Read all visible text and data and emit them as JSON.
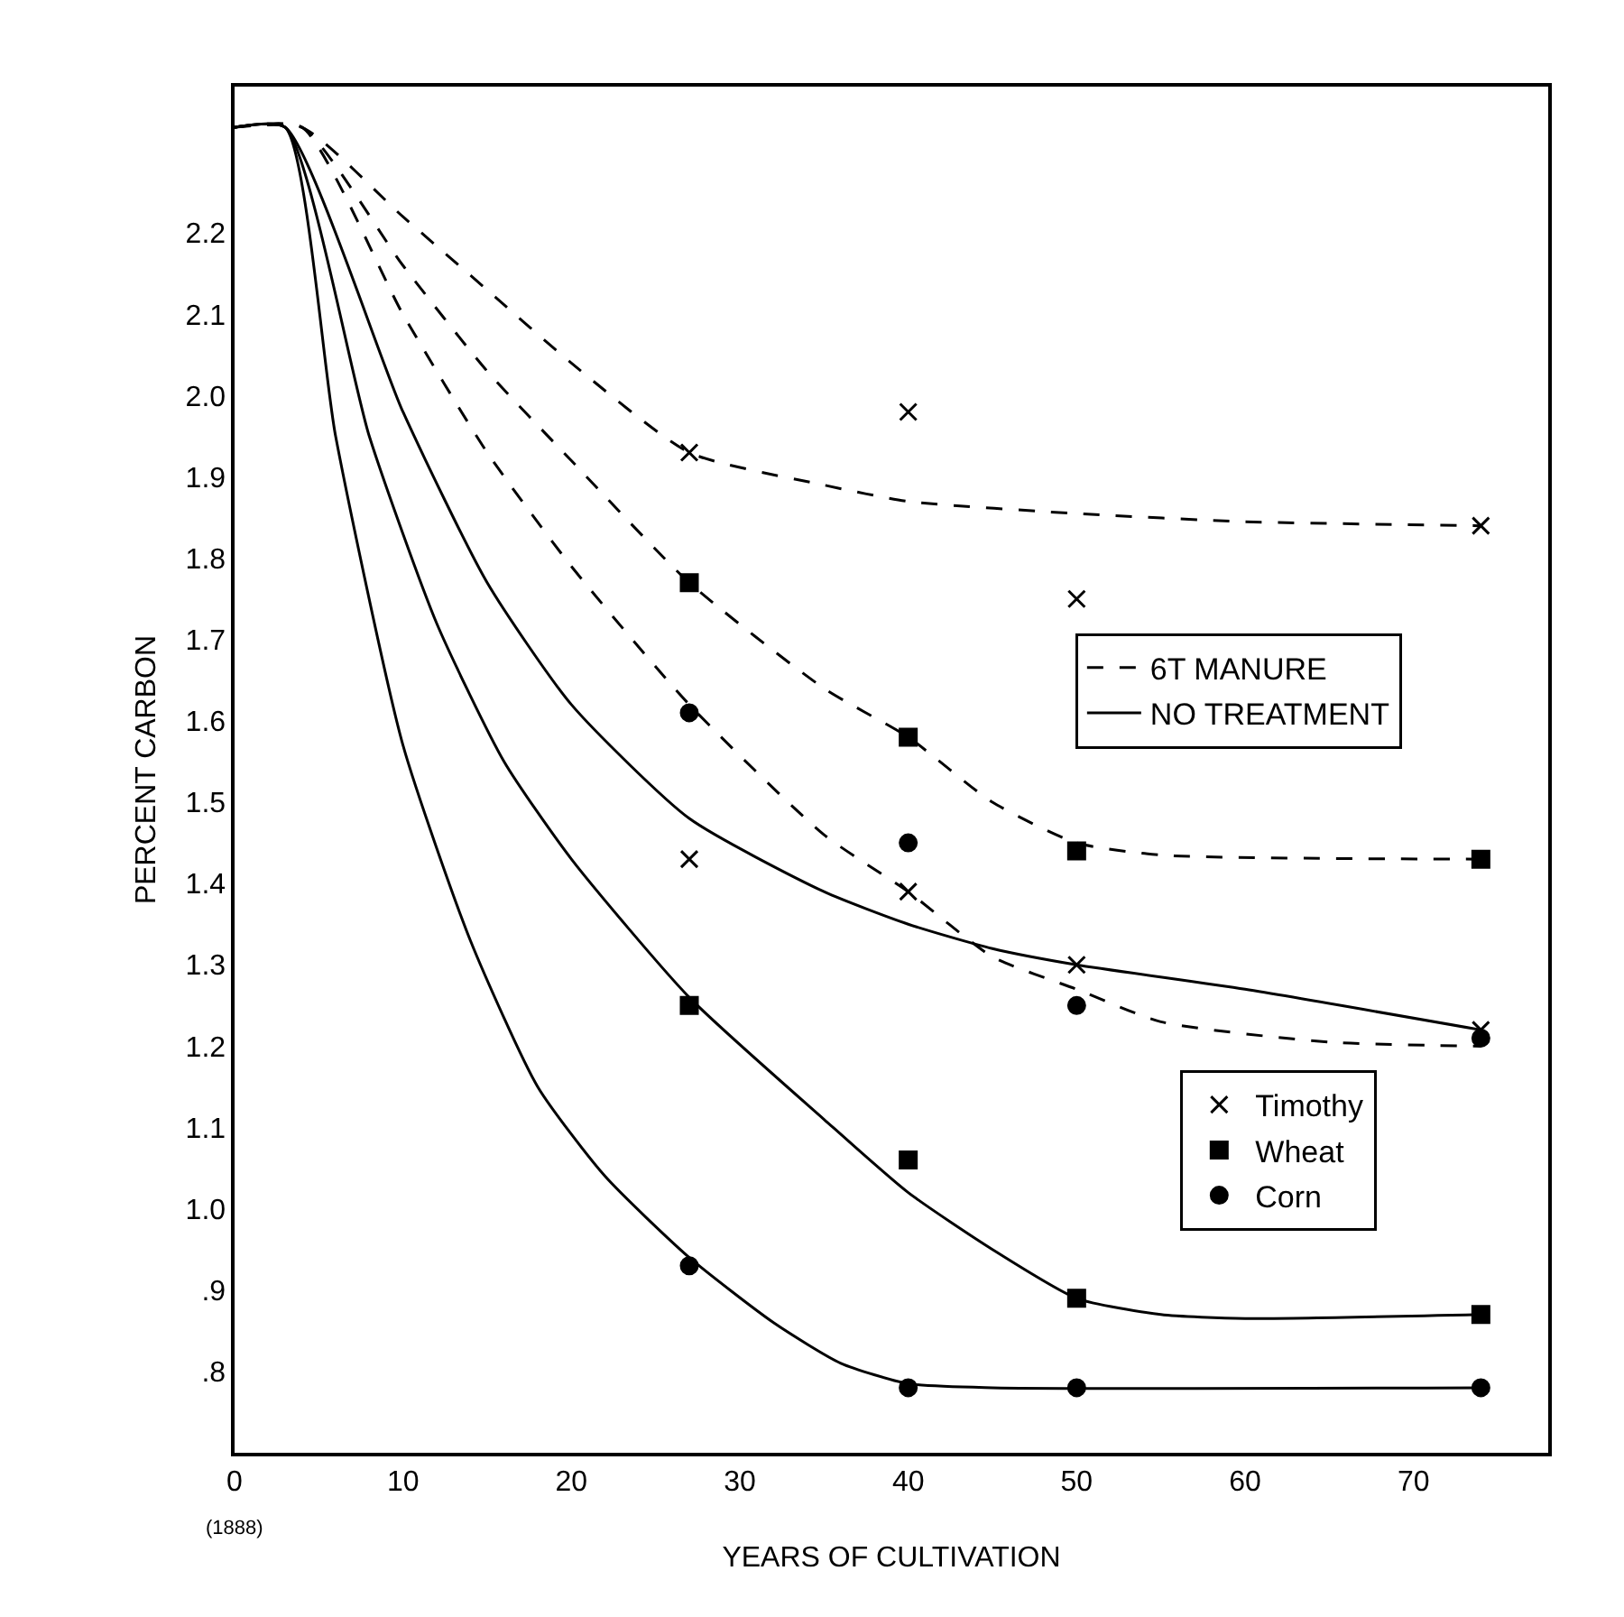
{
  "chart_data": {
    "type": "line",
    "xlabel": "YEARS OF CULTIVATION",
    "ylabel": "PERCENT CARBON",
    "annotations": [
      "(1888)"
    ],
    "xlim": [
      0,
      78
    ],
    "xticks": [
      0,
      10,
      20,
      30,
      40,
      50,
      60,
      70
    ],
    "ylim": [
      0.7,
      2.38
    ],
    "yticks": [
      {
        "value": 0.8,
        "label": ".8"
      },
      {
        "value": 0.9,
        "label": ".9"
      },
      {
        "value": 1.0,
        "label": "1.0"
      },
      1.1,
      1.2,
      1.3,
      1.4,
      1.5,
      1.6,
      1.7,
      1.8,
      1.9,
      {
        "value": 2.0,
        "label": "2.0"
      },
      2.1,
      2.2
    ],
    "legend": "right",
    "series": [
      {
        "name": "6T MANURE",
        "color": "#000000",
        "line_style": "dashed",
        "marker": "none",
        "x": [
          0,
          4,
          10,
          15,
          20,
          27,
          35,
          40,
          50,
          60,
          74
        ],
        "values": [
          2.33,
          2.33,
          2.22,
          2.13,
          2.04,
          1.93,
          1.89,
          1.87,
          1.855,
          1.845,
          1.84
        ]
      },
      {
        "color": "#000000",
        "line_style": "dashed",
        "marker": "none",
        "x": [
          0,
          4,
          10,
          15,
          20,
          27,
          35,
          40,
          45,
          50,
          55,
          74
        ],
        "values": [
          2.33,
          2.33,
          2.16,
          2.03,
          1.92,
          1.77,
          1.64,
          1.58,
          1.5,
          1.45,
          1.435,
          1.43
        ]
      },
      {
        "color": "#000000",
        "line_style": "dashed",
        "marker": "none",
        "x": [
          0,
          4,
          10,
          15,
          20,
          27,
          35,
          40,
          45,
          50,
          55,
          65,
          74
        ],
        "values": [
          2.33,
          2.33,
          2.1,
          1.93,
          1.79,
          1.62,
          1.46,
          1.39,
          1.31,
          1.27,
          1.23,
          1.205,
          1.2
        ]
      },
      {
        "name": "NO TREATMENT",
        "color": "#000000",
        "line_style": "solid",
        "marker": "none",
        "x": [
          0,
          3,
          10,
          15,
          20,
          27,
          35,
          40,
          45,
          50,
          60,
          74
        ],
        "values": [
          2.33,
          2.33,
          1.98,
          1.77,
          1.62,
          1.48,
          1.39,
          1.35,
          1.32,
          1.3,
          1.27,
          1.22
        ]
      },
      {
        "color": "#000000",
        "line_style": "solid",
        "marker": "none",
        "x": [
          0,
          3,
          8,
          12,
          16,
          20,
          27,
          35,
          40,
          45,
          50,
          55,
          60,
          74
        ],
        "values": [
          2.33,
          2.33,
          1.95,
          1.72,
          1.55,
          1.43,
          1.26,
          1.11,
          1.02,
          0.95,
          0.89,
          0.87,
          0.865,
          0.87
        ]
      },
      {
        "color": "#000000",
        "line_style": "solid",
        "marker": "none",
        "x": [
          0,
          3,
          6,
          10,
          14,
          18,
          22,
          27,
          32,
          36,
          40,
          45,
          74
        ],
        "values": [
          2.33,
          2.33,
          1.95,
          1.57,
          1.33,
          1.15,
          1.04,
          0.94,
          0.86,
          0.81,
          0.785,
          0.78,
          0.78
        ]
      },
      {
        "type": "scatter",
        "name": "Timothy",
        "color": "#000000",
        "marker": "cross",
        "x": [
          27,
          40,
          50,
          74,
          27,
          40,
          50,
          74
        ],
        "values": [
          1.93,
          1.98,
          1.75,
          1.84,
          1.43,
          1.39,
          1.3,
          1.22
        ]
      },
      {
        "type": "scatter",
        "name": "Wheat",
        "color": "#000000",
        "marker": "square",
        "x": [
          27,
          40,
          50,
          74,
          27,
          40,
          50,
          74
        ],
        "values": [
          1.77,
          1.58,
          1.44,
          1.43,
          1.25,
          1.06,
          0.89,
          0.87
        ]
      },
      {
        "type": "scatter",
        "name": "Corn",
        "color": "#000000",
        "marker": "circle",
        "x": [
          27,
          40,
          50,
          74,
          27,
          40,
          50,
          74
        ],
        "values": [
          1.61,
          1.45,
          1.25,
          1.21,
          0.93,
          0.78,
          0.78,
          0.78
        ]
      }
    ]
  }
}
